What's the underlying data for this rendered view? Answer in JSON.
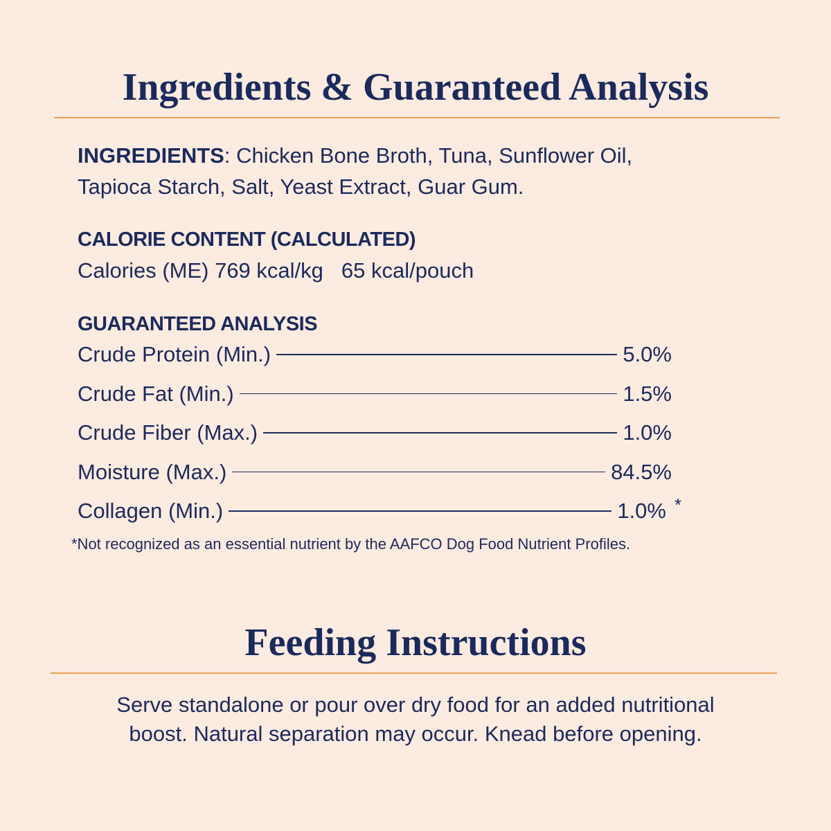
{
  "header": {
    "title": "Ingredients & Guaranteed Analysis"
  },
  "ingredients": {
    "label": "INGREDIENTS",
    "lines": [
      ": Chicken Bone Broth, Tuna, Sunflower Oil,",
      "Tapioca Starch, Salt, Yeast Extract, Guar Gum."
    ]
  },
  "calories": {
    "heading": "CALORIE CONTENT (CALCULATED)",
    "per_kg": "Calories (ME) 769 kcal/kg",
    "per_pouch": "65 kcal/pouch"
  },
  "analysis": {
    "heading": "GUARANTEED ANALYSIS",
    "rows": [
      {
        "name": "Crude Protein (Min.)",
        "value": "5.0%"
      },
      {
        "name": "Crude Fat (Min.)",
        "value": "1.5%"
      },
      {
        "name": "Crude Fiber (Max.)",
        "value": "1.0%"
      },
      {
        "name": "Moisture (Max.)",
        "value": "84.5%"
      },
      {
        "name": "Collagen (Min.)",
        "value": "1.0%",
        "note": "*"
      }
    ],
    "footnote": "*Not recognized as an essential nutrient by the AAFCO Dog Food Nutrient Profiles."
  },
  "feeding": {
    "title": "Feeding Instructions",
    "lines": [
      "Serve standalone or pour over dry food for an added nutritional",
      "boost. Natural separation may occur. Knead before opening."
    ]
  }
}
